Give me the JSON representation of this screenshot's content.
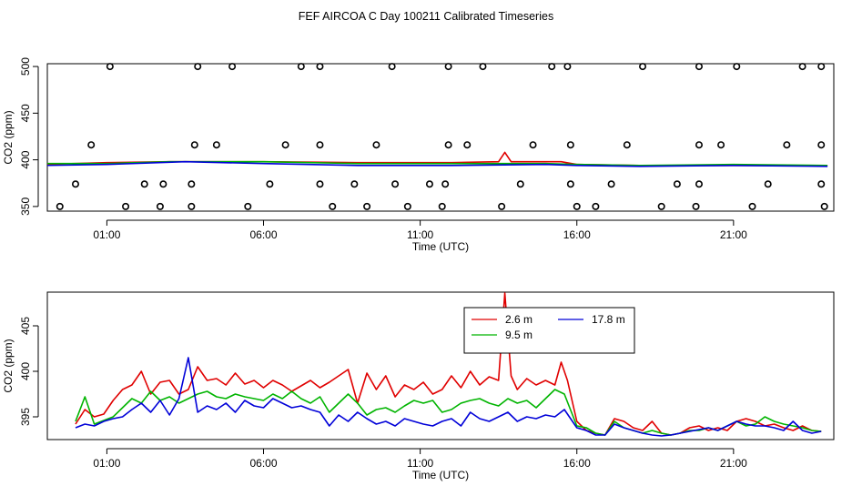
{
  "page_title": "FEF AIRCOA C  Day 100211  Calibrated Timeseries",
  "colors": {
    "red": "#e00000",
    "green": "#00b400",
    "blue": "#0000d8",
    "frame": "#000000"
  },
  "chart_data": [
    {
      "type": "scatter",
      "title": "",
      "xlabel": "Time (UTC)",
      "ylabel": "CO2 (ppm)",
      "x_ticks": [
        "01:00",
        "06:00",
        "11:00",
        "16:00",
        "21:00"
      ],
      "x_tick_hours": [
        1,
        6,
        11,
        16,
        21
      ],
      "xlim": [
        -0.9,
        24.2
      ],
      "y_ticks": [
        350,
        400,
        450,
        500
      ],
      "ylim": [
        345,
        503
      ],
      "markers": {
        "h500": [
          1.1,
          3.9,
          5.0,
          7.2,
          7.8,
          10.1,
          11.9,
          13.0,
          15.2,
          15.7,
          18.1,
          19.9,
          21.1,
          23.2,
          23.8
        ],
        "h416": [
          0.5,
          3.8,
          4.5,
          6.7,
          7.8,
          9.6,
          11.9,
          12.5,
          14.6,
          15.8,
          17.6,
          19.9,
          20.6,
          22.7,
          23.8
        ],
        "h374": [
          0.0,
          2.2,
          2.8,
          3.7,
          6.2,
          7.8,
          8.9,
          10.2,
          11.3,
          11.8,
          14.2,
          15.8,
          17.1,
          19.2,
          19.9,
          22.1,
          23.8
        ],
        "h350": [
          -0.5,
          1.6,
          2.7,
          3.7,
          5.5,
          8.2,
          9.3,
          10.6,
          11.7,
          13.6,
          16.0,
          16.6,
          18.7,
          19.8,
          21.6,
          23.9
        ]
      },
      "series": [
        {
          "name": "",
          "color": "#e00000",
          "x": [
            -1.0,
            1.0,
            3.0,
            6.0,
            9.0,
            12.0,
            13.5,
            13.7,
            13.9,
            15.5,
            16.0,
            18.0,
            21.0,
            24.0
          ],
          "values": [
            395,
            397,
            398,
            398,
            397,
            397,
            398,
            408,
            398,
            398,
            395,
            394,
            394,
            394
          ]
        },
        {
          "name": "",
          "color": "#00b400",
          "x": [
            -1.0,
            1.0,
            3.0,
            6.0,
            9.0,
            12.0,
            15.0,
            16.0,
            18.0,
            21.0,
            24.0
          ],
          "values": [
            396,
            396,
            398,
            398,
            396,
            396,
            396,
            395,
            394,
            395,
            394
          ]
        },
        {
          "name": "",
          "color": "#0000d8",
          "x": [
            -1.0,
            1.0,
            3.5,
            6.0,
            9.0,
            12.0,
            15.0,
            16.0,
            18.0,
            21.0,
            24.0
          ],
          "values": [
            394,
            395,
            398,
            396,
            394,
            394,
            395,
            394,
            393,
            394,
            393
          ]
        }
      ]
    },
    {
      "type": "line",
      "title": "",
      "xlabel": "Time (UTC)",
      "ylabel": "CO2 (ppm)",
      "x_ticks": [
        "01:00",
        "06:00",
        "11:00",
        "16:00",
        "21:00"
      ],
      "x_tick_hours": [
        1,
        6,
        11,
        16,
        21
      ],
      "xlim": [
        -0.9,
        24.2
      ],
      "y_ticks": [
        395,
        400,
        405
      ],
      "ylim": [
        392.5,
        408.7
      ],
      "legend": {
        "placement": "top-center",
        "entries": [
          "2.6 m",
          "17.8 m",
          "9.5 m"
        ]
      },
      "series": [
        {
          "name": "2.6 m",
          "color": "#e00000",
          "x": [
            0,
            0.3,
            0.6,
            0.9,
            1.2,
            1.5,
            1.8,
            2.1,
            2.4,
            2.7,
            3.0,
            3.3,
            3.6,
            3.9,
            4.2,
            4.5,
            4.8,
            5.1,
            5.4,
            5.7,
            6.0,
            6.3,
            6.6,
            6.9,
            7.2,
            7.5,
            7.8,
            8.1,
            8.4,
            8.7,
            9.0,
            9.3,
            9.6,
            9.9,
            10.2,
            10.5,
            10.8,
            11.1,
            11.4,
            11.7,
            12.0,
            12.3,
            12.6,
            12.9,
            13.2,
            13.5,
            13.7,
            13.9,
            14.1,
            14.4,
            14.7,
            15.0,
            15.3,
            15.5,
            15.7,
            16.0,
            16.3,
            16.6,
            16.9,
            17.2,
            17.5,
            17.8,
            18.1,
            18.4,
            18.7,
            19.0,
            19.3,
            19.6,
            19.9,
            20.2,
            20.5,
            20.8,
            21.1,
            21.4,
            21.7,
            22.0,
            22.3,
            22.6,
            22.9,
            23.2,
            23.5,
            23.8
          ],
          "values": [
            394.2,
            395.8,
            395.0,
            395.3,
            396.8,
            398.0,
            398.5,
            400.0,
            397.5,
            398.8,
            399.0,
            397.5,
            398.0,
            400.5,
            399.0,
            399.2,
            398.5,
            399.8,
            398.6,
            399.0,
            398.2,
            399.0,
            398.5,
            397.8,
            398.4,
            399.0,
            398.2,
            398.8,
            399.5,
            400.2,
            396.5,
            399.8,
            398.0,
            399.5,
            397.2,
            398.5,
            398.0,
            398.8,
            397.5,
            398.0,
            399.5,
            398.2,
            400.0,
            398.5,
            399.4,
            399.0,
            408.6,
            399.5,
            398.0,
            399.2,
            398.5,
            399.0,
            398.5,
            401.0,
            399.0,
            394.5,
            393.5,
            393.2,
            393.0,
            394.8,
            394.5,
            393.8,
            393.5,
            394.5,
            393.2,
            393.0,
            393.2,
            393.8,
            394.0,
            393.5,
            393.8,
            393.5,
            394.5,
            394.8,
            394.5,
            394.0,
            394.2,
            393.8,
            393.5,
            394.0,
            393.5,
            393.4
          ]
        },
        {
          "name": "9.5 m",
          "color": "#00b400",
          "x": [
            0,
            0.3,
            0.6,
            0.9,
            1.2,
            1.5,
            1.8,
            2.1,
            2.4,
            2.7,
            3.0,
            3.3,
            3.6,
            3.9,
            4.2,
            4.5,
            4.8,
            5.1,
            5.4,
            5.7,
            6.0,
            6.3,
            6.6,
            6.9,
            7.2,
            7.5,
            7.8,
            8.1,
            8.4,
            8.7,
            9.0,
            9.3,
            9.6,
            9.9,
            10.2,
            10.5,
            10.8,
            11.1,
            11.4,
            11.7,
            12.0,
            12.3,
            12.6,
            12.9,
            13.2,
            13.5,
            13.8,
            14.1,
            14.4,
            14.7,
            15.0,
            15.3,
            15.6,
            16.0,
            16.3,
            16.6,
            16.9,
            17.2,
            17.5,
            17.8,
            18.1,
            18.4,
            18.7,
            19.0,
            19.3,
            19.6,
            19.9,
            20.2,
            20.5,
            20.8,
            21.1,
            21.4,
            21.7,
            22.0,
            22.3,
            22.6,
            22.9,
            23.2,
            23.5,
            23.8
          ],
          "values": [
            394.5,
            397.2,
            394.2,
            394.6,
            395.0,
            396.0,
            397.0,
            396.5,
            397.8,
            396.8,
            397.2,
            396.5,
            397.0,
            397.5,
            397.8,
            397.2,
            397.0,
            397.5,
            397.2,
            397.0,
            396.8,
            397.5,
            397.0,
            397.8,
            397.0,
            396.5,
            397.2,
            395.5,
            396.5,
            397.5,
            396.5,
            395.2,
            395.8,
            396.0,
            395.5,
            396.2,
            396.8,
            396.5,
            396.8,
            395.5,
            395.8,
            396.5,
            396.8,
            397.0,
            396.5,
            396.2,
            397.0,
            396.5,
            396.8,
            396.0,
            397.0,
            398.0,
            397.5,
            394.0,
            393.8,
            393.2,
            393.0,
            394.5,
            393.8,
            393.5,
            393.2,
            393.5,
            393.2,
            393.0,
            393.2,
            393.5,
            393.5,
            393.8,
            393.5,
            394.0,
            394.5,
            394.0,
            394.2,
            395.0,
            394.5,
            394.2,
            394.0,
            393.8,
            393.5,
            393.4
          ]
        },
        {
          "name": "17.8 m",
          "color": "#0000d8",
          "x": [
            0,
            0.3,
            0.6,
            0.9,
            1.2,
            1.5,
            1.8,
            2.1,
            2.4,
            2.7,
            3.0,
            3.3,
            3.6,
            3.9,
            4.2,
            4.5,
            4.8,
            5.1,
            5.4,
            5.7,
            6.0,
            6.3,
            6.6,
            6.9,
            7.2,
            7.5,
            7.8,
            8.1,
            8.4,
            8.7,
            9.0,
            9.3,
            9.6,
            9.9,
            10.2,
            10.5,
            10.8,
            11.1,
            11.4,
            11.7,
            12.0,
            12.3,
            12.6,
            12.9,
            13.2,
            13.5,
            13.8,
            14.1,
            14.4,
            14.7,
            15.0,
            15.3,
            15.6,
            16.0,
            16.3,
            16.6,
            16.9,
            17.2,
            17.5,
            17.8,
            18.1,
            18.4,
            18.7,
            19.0,
            19.3,
            19.6,
            19.9,
            20.2,
            20.5,
            20.8,
            21.1,
            21.4,
            21.7,
            22.0,
            22.3,
            22.6,
            22.9,
            23.2,
            23.5,
            23.8
          ],
          "values": [
            393.8,
            394.2,
            394.0,
            394.5,
            394.8,
            395.0,
            395.8,
            396.5,
            395.5,
            396.8,
            395.2,
            397.0,
            401.5,
            395.5,
            396.2,
            395.8,
            396.5,
            395.5,
            396.8,
            396.2,
            396.0,
            397.0,
            396.5,
            396.0,
            396.2,
            395.8,
            395.5,
            394.0,
            395.2,
            394.5,
            395.5,
            394.8,
            394.2,
            394.5,
            394.0,
            394.8,
            394.5,
            394.2,
            394.0,
            394.5,
            394.8,
            394.0,
            395.5,
            394.8,
            394.5,
            395.0,
            395.5,
            394.5,
            395.0,
            394.8,
            395.2,
            395.0,
            395.8,
            393.8,
            393.5,
            393.0,
            393.0,
            394.2,
            393.8,
            393.5,
            393.2,
            393.0,
            392.9,
            393.0,
            393.2,
            393.4,
            393.6,
            393.8,
            393.5,
            394.0,
            394.5,
            394.2,
            394.0,
            394.0,
            393.8,
            393.5,
            394.5,
            393.5,
            393.2,
            393.4
          ]
        }
      ]
    }
  ]
}
